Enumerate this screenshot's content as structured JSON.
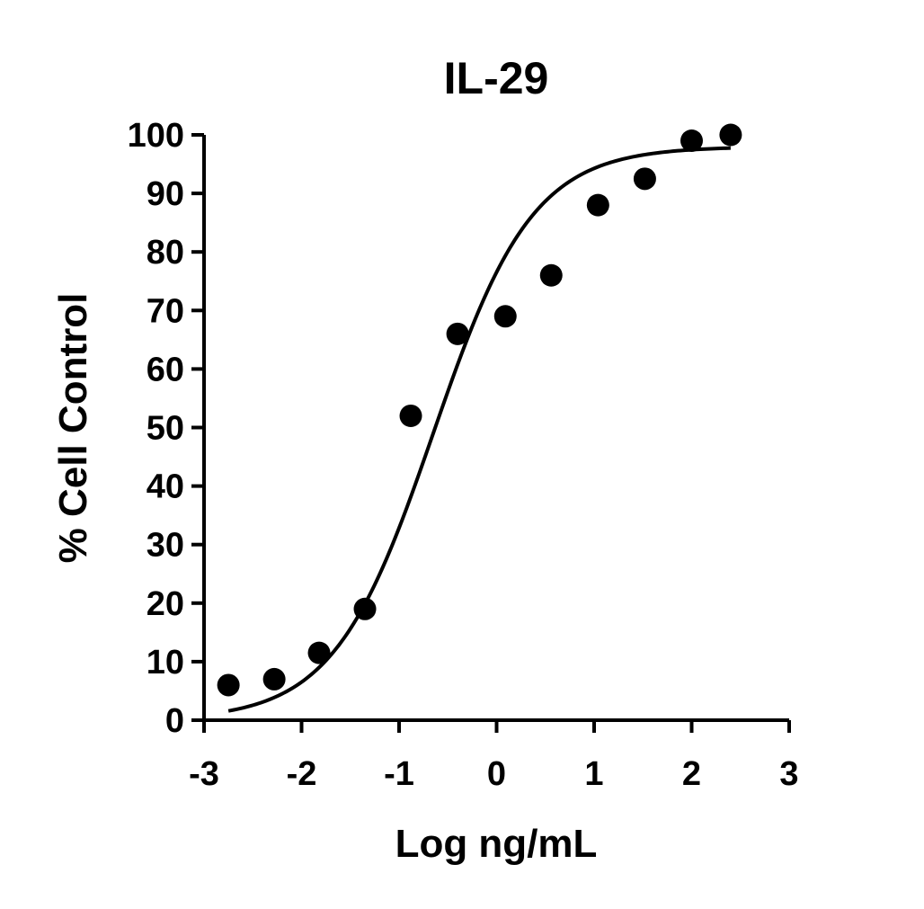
{
  "chart_data": {
    "type": "scatter",
    "title": "IL-29",
    "xlabel": "Log ng/mL",
    "ylabel": "% Cell Control",
    "xlim": [
      -3,
      3
    ],
    "ylim": [
      0,
      100
    ],
    "xticks": [
      -3,
      -2,
      -1,
      0,
      1,
      2,
      3
    ],
    "xtick_labels": [
      "-3",
      "-2",
      "-1",
      "0",
      "1",
      "2",
      "3"
    ],
    "yticks": [
      0,
      10,
      20,
      30,
      40,
      50,
      60,
      70,
      80,
      90,
      100
    ],
    "ytick_labels": [
      "0",
      "10",
      "20",
      "30",
      "40",
      "50",
      "60",
      "70",
      "80",
      "90",
      "100"
    ],
    "grid": false,
    "legend": "none",
    "series": [
      {
        "x": [
          -2.75,
          -2.28,
          -1.82,
          -1.35,
          -0.88,
          -0.4,
          0.09,
          0.56,
          1.04,
          1.52,
          2.0,
          2.4
        ],
        "y": [
          6,
          7,
          11.5,
          19,
          52,
          66,
          69,
          76,
          88,
          92.5,
          99,
          100
        ]
      }
    ],
    "fit_curve": {
      "type": "sigmoid",
      "bottom": 0,
      "top": 98,
      "log_ec50": -0.65,
      "hill_slope": 0.85,
      "x_range": [
        -2.75,
        2.4
      ]
    }
  }
}
